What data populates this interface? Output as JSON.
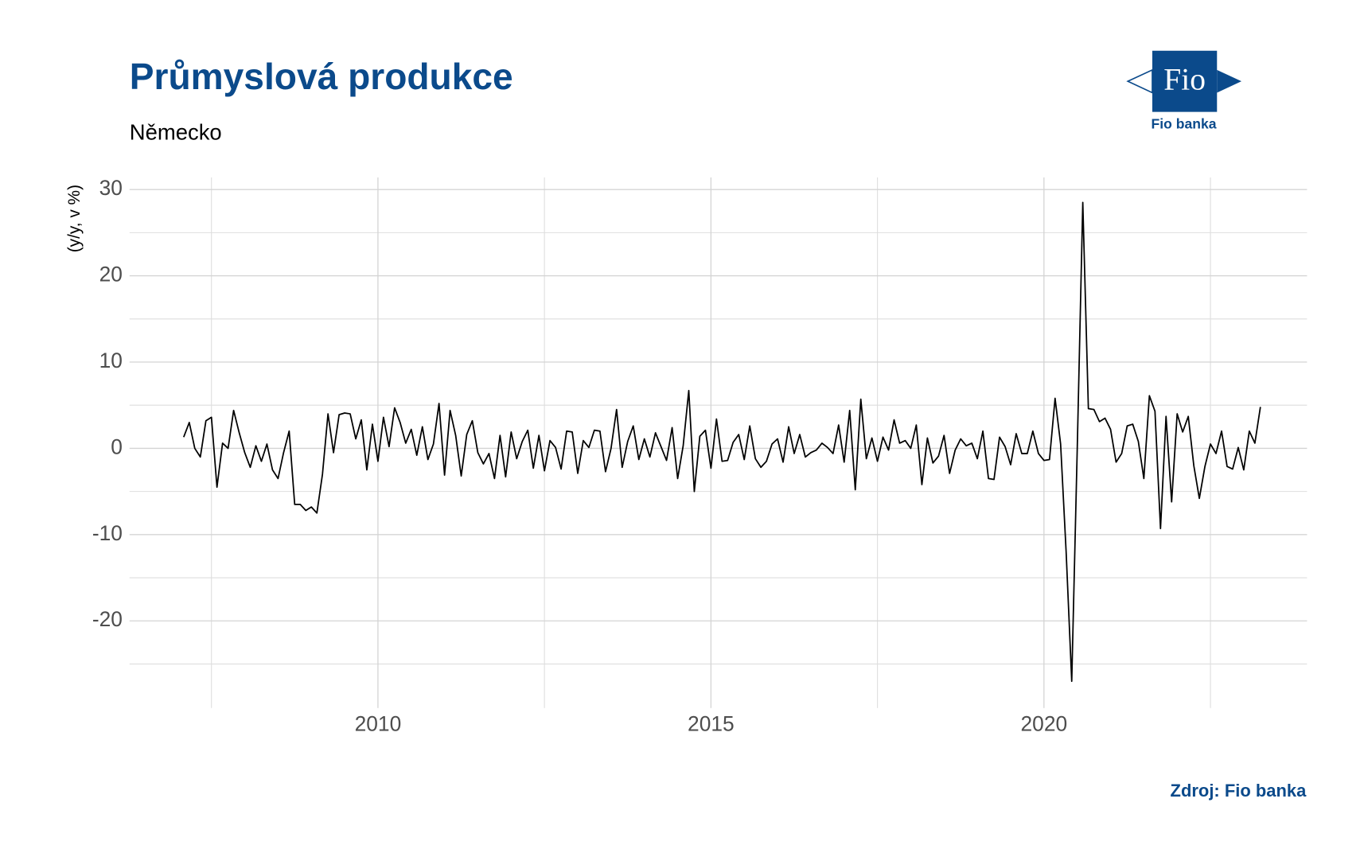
{
  "chart_data": {
    "type": "line",
    "title": "Průmyslová produkce",
    "subtitle": "Německo",
    "y_label": "(y/y, v %)",
    "source": "Zdroj: Fio banka",
    "logo_text": "Fio",
    "logo_caption": "Fio banka",
    "xlim": [
      2006.27,
      2023.95
    ],
    "xticks": [
      2010,
      2015,
      2020
    ],
    "xminor": [
      2007.5,
      2012.5,
      2017.5,
      2022.5
    ],
    "ylim": [
      -30.1,
      31.4
    ],
    "yticks": [
      -20,
      -10,
      0,
      10,
      20,
      30
    ],
    "yminor": [
      -25,
      -15,
      -5,
      5,
      15,
      25
    ],
    "grid": true,
    "x": [
      2007.083,
      2007.167,
      2007.25,
      2007.333,
      2007.417,
      2007.5,
      2007.583,
      2007.667,
      2007.75,
      2007.833,
      2007.917,
      2008,
      2008.083,
      2008.167,
      2008.25,
      2008.333,
      2008.417,
      2008.5,
      2008.583,
      2008.667,
      2008.75,
      2008.833,
      2008.917,
      2009,
      2009.083,
      2009.167,
      2009.25,
      2009.333,
      2009.417,
      2009.5,
      2009.583,
      2009.667,
      2009.75,
      2009.833,
      2009.917,
      2010,
      2010.083,
      2010.167,
      2010.25,
      2010.333,
      2010.417,
      2010.5,
      2010.583,
      2010.667,
      2010.75,
      2010.833,
      2010.917,
      2011,
      2011.083,
      2011.167,
      2011.25,
      2011.333,
      2011.417,
      2011.5,
      2011.583,
      2011.667,
      2011.75,
      2011.833,
      2011.917,
      2012,
      2012.083,
      2012.167,
      2012.25,
      2012.333,
      2012.417,
      2012.5,
      2012.583,
      2012.667,
      2012.75,
      2012.833,
      2012.917,
      2013,
      2013.083,
      2013.167,
      2013.25,
      2013.333,
      2013.417,
      2013.5,
      2013.583,
      2013.667,
      2013.75,
      2013.833,
      2013.917,
      2014,
      2014.083,
      2014.167,
      2014.25,
      2014.333,
      2014.417,
      2014.5,
      2014.583,
      2014.667,
      2014.75,
      2014.833,
      2014.917,
      2015,
      2015.083,
      2015.167,
      2015.25,
      2015.333,
      2015.417,
      2015.5,
      2015.583,
      2015.667,
      2015.75,
      2015.833,
      2015.917,
      2016,
      2016.083,
      2016.167,
      2016.25,
      2016.333,
      2016.417,
      2016.5,
      2016.583,
      2016.667,
      2016.75,
      2016.833,
      2016.917,
      2017,
      2017.083,
      2017.167,
      2017.25,
      2017.333,
      2017.417,
      2017.5,
      2017.583,
      2017.667,
      2017.75,
      2017.833,
      2017.917,
      2018,
      2018.083,
      2018.167,
      2018.25,
      2018.333,
      2018.417,
      2018.5,
      2018.583,
      2018.667,
      2018.75,
      2018.833,
      2018.917,
      2019,
      2019.083,
      2019.167,
      2019.25,
      2019.333,
      2019.417,
      2019.5,
      2019.583,
      2019.667,
      2019.75,
      2019.833,
      2019.917,
      2020,
      2020.083,
      2020.167,
      2020.25,
      2020.333,
      2020.417,
      2020.5,
      2020.583,
      2020.667,
      2020.75,
      2020.833,
      2020.917,
      2021,
      2021.083,
      2021.167,
      2021.25,
      2021.333,
      2021.417,
      2021.5,
      2021.583,
      2021.667,
      2021.75,
      2021.833,
      2021.917,
      2022,
      2022.083,
      2022.167,
      2022.25,
      2022.333,
      2022.417,
      2022.5,
      2022.583,
      2022.667,
      2022.75,
      2022.833,
      2022.917,
      2023,
      2023.083,
      2023.167,
      2023.25
    ],
    "series": [
      {
        "name": "Německo",
        "color": "#000000",
        "values": [
          1.3,
          3.0,
          0,
          -1,
          3.2,
          3.6,
          -4.5,
          0.6,
          0,
          4.4,
          1.8,
          -0.5,
          -2.2,
          0.3,
          -1.5,
          0.5,
          -2.5,
          -3.5,
          -0.5,
          2.0,
          -6.5,
          -6.5,
          -7.2,
          -6.8,
          -7.5,
          -3,
          4.0,
          -0.5,
          3.9,
          4.1,
          4.0,
          1.1,
          3.3,
          -2.5,
          2.8,
          -1.5,
          3.6,
          0.2,
          4.7,
          3.0,
          0.6,
          2.2,
          -0.8,
          2.5,
          -1.3,
          0.5,
          5.2,
          -3.1,
          4.4,
          1.5,
          -3.2,
          1.6,
          3.2,
          -0.5,
          -1.8,
          -0.6,
          -3.5,
          1.5,
          -3.3,
          1.9,
          -1.2,
          0.8,
          2.1,
          -2.3,
          1.5,
          -2.6,
          0.9,
          0.1,
          -2.4,
          2.0,
          1.9,
          -2.9,
          0.9,
          0.1,
          2.1,
          2.0,
          -2.7,
          0,
          4.5,
          -2.2,
          0.8,
          2.6,
          -1.3,
          1.1,
          -1.0,
          1.8,
          0.2,
          -1.4,
          2.4,
          -3.5,
          0.3,
          6.7,
          -5.0,
          1.4,
          2.1,
          -2.3,
          3.4,
          -1.5,
          -1.4,
          0.7,
          1.6,
          -1.3,
          2.6,
          -1.2,
          -2.2,
          -1.5,
          0.5,
          1.1,
          -1.6,
          2.5,
          -0.6,
          1.6,
          -1.0,
          -0.5,
          -0.2,
          0.6,
          0.1,
          -0.6,
          2.7,
          -1.6,
          4.4,
          -4.8,
          5.7,
          -1.2,
          1.2,
          -1.5,
          1.3,
          -0.2,
          3.3,
          0.6,
          0.9,
          0,
          2.7,
          -4.2,
          1.2,
          -1.7,
          -0.9,
          1.5,
          -2.9,
          -0.2,
          1.1,
          0.3,
          0.6,
          -1.2,
          2.0,
          -3.5,
          -3.6,
          1.3,
          0.2,
          -1.9,
          1.7,
          -0.6,
          -0.6,
          2.0,
          -0.6,
          -1.4,
          -1.3,
          5.8,
          0.5,
          -12,
          -27,
          0,
          28.5,
          4.6,
          4.5,
          3.1,
          3.5,
          2.2,
          -1.6,
          -0.6,
          2.6,
          2.8,
          0.8,
          -3.5,
          6.1,
          4.3,
          -9.3,
          3.7,
          -6.2,
          4.0,
          1.9,
          3.7,
          -2.0,
          -5.8,
          -2.1,
          0.5,
          -0.6,
          2.0,
          -2.1,
          -2.4,
          0.1,
          -2.5,
          2.0,
          0.6,
          4.8
        ]
      }
    ]
  }
}
